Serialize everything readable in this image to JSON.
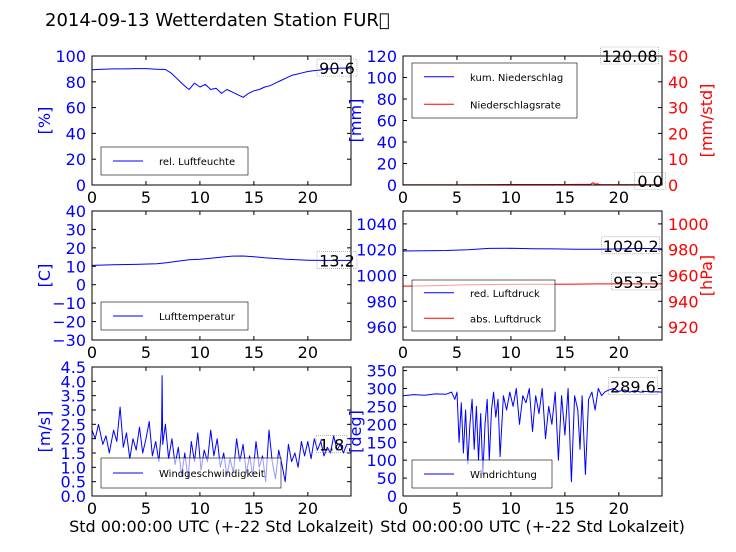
{
  "figure_title": "2014-09-13 Wetterdaten Station FUR\u0000",
  "chart_data": [
    {
      "id": "humidity",
      "type": "line",
      "ylabel": "[%]",
      "xlabel": "",
      "xlim": [
        0,
        24
      ],
      "ylim": [
        0,
        100
      ],
      "xticks": [
        "0",
        "5",
        "10",
        "15",
        "20"
      ],
      "yticks": [
        "0",
        "20",
        "40",
        "60",
        "80",
        "100"
      ],
      "legend": {
        "placement": "lower-left",
        "entries": [
          {
            "label": "rel. Luftfeuchte",
            "color": "#0000ff"
          }
        ]
      },
      "annotations": [
        {
          "text": "90.6",
          "x": 22.7,
          "y": 90.6
        }
      ],
      "series": [
        {
          "name": "rel. Luftfeuchte",
          "color": "#0000ff",
          "x": [
            0,
            1,
            2,
            3,
            4,
            5,
            6,
            6.8,
            7.3,
            7.8,
            8.3,
            8.7,
            9.0,
            9.5,
            10,
            10.5,
            11,
            11.5,
            12,
            12.5,
            13,
            13.5,
            14,
            14.5,
            15,
            15.5,
            16,
            16.5,
            17,
            17.5,
            18,
            18.5,
            19,
            19.5,
            20,
            20.5,
            21,
            21.5,
            22,
            22.5,
            23,
            24
          ],
          "y": [
            89.3,
            89.8,
            90,
            90,
            90.2,
            90.2,
            89.8,
            89.5,
            87,
            83,
            79,
            76,
            74,
            79,
            76,
            78,
            74,
            75,
            71,
            74,
            72,
            70,
            68,
            71,
            73,
            74,
            76,
            77,
            79,
            81,
            83,
            85,
            86,
            87,
            88,
            88.5,
            89,
            89.5,
            90,
            90.3,
            90.6,
            90.6
          ]
        }
      ]
    },
    {
      "id": "precip",
      "type": "line",
      "ylabel": "[mm]",
      "ylabel_right": "[mm/std]",
      "xlabel": "",
      "xlim": [
        0,
        24
      ],
      "ylim": [
        0,
        120
      ],
      "ylim_right": [
        0,
        50
      ],
      "xticks": [
        "0",
        "5",
        "10",
        "15",
        "20"
      ],
      "yticks": [
        "0",
        "20",
        "40",
        "60",
        "80",
        "100",
        "120"
      ],
      "yticks_right": [
        "0",
        "10",
        "20",
        "30",
        "40",
        "50"
      ],
      "legend": {
        "placement": "upper-left",
        "entries": [
          {
            "label": "kum. Niederschlag",
            "color": "#0000ff"
          },
          {
            "label": "Niederschlagsrate",
            "color": "#ff0000"
          }
        ]
      },
      "annotations": [
        {
          "text": "120.08",
          "x": 21.0,
          "y": 120
        },
        {
          "text": "0.0",
          "x": 22.9,
          "y": 3.5
        }
      ],
      "series": [
        {
          "name": "kum. Niederschlag",
          "color": "#0000ff",
          "axis": "left",
          "x": [
            0,
            24
          ],
          "y": [
            0,
            0
          ]
        },
        {
          "name": "Niederschlagsrate",
          "color": "#ff0000",
          "axis": "right",
          "x": [
            0,
            5,
            10,
            15,
            17.4,
            17.6,
            17.8,
            18,
            18.2,
            24
          ],
          "y": [
            0.1,
            0.1,
            0.2,
            0.2,
            0.3,
            0.9,
            0.3,
            0.5,
            0.2,
            0.1
          ]
        }
      ]
    },
    {
      "id": "temperature",
      "type": "line",
      "ylabel": "[C]",
      "xlabel": "",
      "xlim": [
        0,
        24
      ],
      "ylim": [
        -30,
        40
      ],
      "xticks": [
        "0",
        "5",
        "10",
        "15",
        "20"
      ],
      "yticks": [
        "−30",
        "−20",
        "−10",
        "0",
        "10",
        "20",
        "30",
        "40"
      ],
      "legend": {
        "placement": "lower-left",
        "entries": [
          {
            "label": "Lufttemperatur",
            "color": "#0000ff"
          }
        ]
      },
      "annotations": [
        {
          "text": "13.2",
          "x": 22.7,
          "y": 13.2
        }
      ],
      "series": [
        {
          "name": "Lufttemperatur",
          "color": "#0000ff",
          "x": [
            0,
            2,
            4,
            6,
            7,
            8,
            9,
            10,
            11,
            12,
            13,
            14,
            15,
            16,
            17,
            18,
            19,
            20,
            21,
            22,
            23,
            24
          ],
          "y": [
            10.5,
            10.8,
            11,
            11.4,
            12,
            12.8,
            13.5,
            13.8,
            14.4,
            15,
            15.5,
            15.6,
            15.2,
            14.6,
            14.2,
            13.8,
            13.5,
            13.3,
            13.2,
            13.2,
            13.2,
            13.2
          ]
        }
      ]
    },
    {
      "id": "pressure",
      "type": "line",
      "ylabel": "",
      "ylabel_right": "[hPa]",
      "xlabel": "",
      "xlim": [
        0,
        24
      ],
      "ylim": [
        950,
        1050
      ],
      "ylim_right": [
        910,
        1010
      ],
      "xticks": [
        "0",
        "5",
        "10",
        "15",
        "20"
      ],
      "yticks": [
        "960",
        "980",
        "1000",
        "1020",
        "1040"
      ],
      "yticks_right": [
        "920",
        "940",
        "960",
        "980",
        "1000"
      ],
      "legend": {
        "placement": "lower-left",
        "entries": [
          {
            "label": "red. Luftdruck",
            "color": "#0000ff"
          },
          {
            "label": "abs. Luftdruck",
            "color": "#ff0000"
          }
        ]
      },
      "annotations": [
        {
          "text": "1020.2",
          "x": 21.1,
          "y": 1023
        },
        {
          "text": "953.5",
          "x": 21.6,
          "y": 995
        }
      ],
      "series": [
        {
          "name": "red. Luftdruck",
          "color": "#0000ff",
          "axis": "left",
          "x": [
            0,
            2,
            4,
            6,
            8,
            10,
            12,
            14,
            16,
            18,
            20,
            22,
            24
          ],
          "y": [
            1019,
            1019.2,
            1019.4,
            1020,
            1021,
            1021.1,
            1020.7,
            1020.6,
            1020.4,
            1020.4,
            1020.6,
            1021,
            1020.8
          ]
        },
        {
          "name": "abs. Luftdruck",
          "color": "#ff0000",
          "axis": "right",
          "x": [
            0,
            2,
            4,
            6,
            8,
            10,
            12,
            14,
            16,
            18,
            20,
            22,
            24
          ],
          "y": [
            951.8,
            951.9,
            952.3,
            952.8,
            953,
            953.1,
            953.2,
            953.2,
            953.3,
            953.5,
            953.5,
            953.5,
            953.5
          ]
        }
      ]
    },
    {
      "id": "wind-speed",
      "type": "line",
      "ylabel": "[m/s]",
      "xlabel": "Std 00:00:00 UTC (+-22 Std Lokalzeit)",
      "xlim": [
        0,
        24
      ],
      "ylim": [
        0,
        4.5
      ],
      "xticks": [
        "0",
        "5",
        "10",
        "15",
        "20"
      ],
      "yticks": [
        "0.0",
        "0.5",
        "1.0",
        "1.5",
        "2.0",
        "2.5",
        "3.0",
        "3.5",
        "4.0",
        "4.5"
      ],
      "legend": {
        "placement": "lower-left",
        "entries": [
          {
            "label": "Windgeschwindigkeit",
            "color": "#0000ff"
          }
        ]
      },
      "annotations": [
        {
          "text": "1.8",
          "x": 22.2,
          "y": 1.8
        }
      ],
      "series": [
        {
          "name": "Windgeschwindigkeit",
          "color": "#0000ff",
          "x": [
            0,
            0.3,
            0.6,
            1,
            1.3,
            1.6,
            2,
            2.3,
            2.6,
            2.9,
            3.2,
            3.5,
            3.8,
            4.1,
            4.4,
            4.7,
            5,
            5.3,
            5.6,
            5.9,
            6.2,
            6.45,
            6.5,
            6.55,
            6.8,
            7.1,
            7.4,
            7.7,
            8,
            8.3,
            8.6,
            8.9,
            9.2,
            9.5,
            9.8,
            10.1,
            10.4,
            10.7,
            11,
            11.3,
            11.6,
            11.9,
            12.2,
            12.5,
            12.8,
            13.1,
            13.4,
            13.7,
            14,
            14.3,
            14.6,
            14.9,
            15.2,
            15.5,
            15.8,
            16.1,
            16.4,
            16.7,
            17,
            17.3,
            17.6,
            17.9,
            18.2,
            18.5,
            18.8,
            19.1,
            19.4,
            19.7,
            20,
            20.3,
            20.6,
            20.9,
            21.2,
            21.5,
            21.8,
            22.1,
            22.4,
            22.7,
            23,
            23.3,
            23.6,
            24
          ],
          "y": [
            2.3,
            2.0,
            2.5,
            1.8,
            2.1,
            1.5,
            2.3,
            1.9,
            3.1,
            1.7,
            2.2,
            1.3,
            2.0,
            1.6,
            2.4,
            1.5,
            2.0,
            2.6,
            1.4,
            1.9,
            1.2,
            2.4,
            4.2,
            1.8,
            2.5,
            1.3,
            2.0,
            1.1,
            1.7,
            0.7,
            1.5,
            0.6,
            1.9,
            1.2,
            2.2,
            0.9,
            1.6,
            1.2,
            2.3,
            1.4,
            2.0,
            1.0,
            1.5,
            0.7,
            1.3,
            0.8,
            2.0,
            1.2,
            1.8,
            0.8,
            1.4,
            0.7,
            1.9,
            1.0,
            1.4,
            0.5,
            2.3,
            1.2,
            0.6,
            1.6,
            1.1,
            0.5,
            1.8,
            1.2,
            1.5,
            1.0,
            1.9,
            1.4,
            1.9,
            1.3,
            2.0,
            1.6,
            1.9,
            1.4,
            1.7,
            1.5,
            2.1,
            1.6,
            1.8,
            1.5,
            1.8,
            1.8
          ]
        }
      ]
    },
    {
      "id": "wind-direction",
      "type": "line",
      "ylabel": "[deg]",
      "xlabel": "Std 00:00:00 UTC (+-22 Std Lokalzeit)",
      "xlim": [
        0,
        24
      ],
      "ylim": [
        0,
        360
      ],
      "xticks": [
        "0",
        "5",
        "10",
        "15",
        "20"
      ],
      "yticks": [
        "0",
        "50",
        "100",
        "150",
        "200",
        "250",
        "300",
        "350"
      ],
      "legend": {
        "placement": "lower-left",
        "entries": [
          {
            "label": "Windrichtung",
            "color": "#0000ff"
          }
        ]
      },
      "annotations": [
        {
          "text": "289.6",
          "x": 21.3,
          "y": 305
        }
      ],
      "series": [
        {
          "name": "Windrichtung",
          "color": "#0000ff",
          "x": [
            0,
            1,
            2,
            3,
            4,
            4.5,
            4.8,
            5,
            5.2,
            5.4,
            5.6,
            5.8,
            6,
            6.2,
            6.4,
            6.6,
            6.8,
            7,
            7.2,
            7.4,
            7.6,
            7.8,
            8,
            8.2,
            8.4,
            8.6,
            8.8,
            9,
            9.3,
            9.6,
            9.9,
            10.2,
            10.5,
            10.8,
            11.1,
            11.4,
            11.7,
            12,
            12.3,
            12.6,
            12.9,
            13.2,
            13.5,
            13.8,
            14.1,
            14.4,
            14.7,
            15,
            15.3,
            15.6,
            15.9,
            16.2,
            16.4,
            16.6,
            16.9,
            17.2,
            17.5,
            17.8,
            18.1,
            18.4,
            18.7,
            19,
            19.5,
            20,
            20.5,
            21,
            21.5,
            22,
            22.5,
            23,
            23.5,
            24
          ],
          "y": [
            280,
            283,
            281,
            285,
            284,
            290,
            270,
            290,
            150,
            260,
            120,
            240,
            90,
            200,
            270,
            130,
            250,
            100,
            230,
            60,
            200,
            270,
            100,
            240,
            290,
            220,
            270,
            110,
            280,
            240,
            290,
            250,
            300,
            200,
            280,
            260,
            300,
            180,
            280,
            230,
            300,
            160,
            250,
            200,
            290,
            100,
            280,
            170,
            300,
            40,
            280,
            240,
            130,
            280,
            60,
            270,
            290,
            240,
            300,
            280,
            290,
            295,
            300,
            292,
            296,
            290,
            294,
            290,
            292,
            290,
            291,
            290
          ]
        }
      ]
    }
  ]
}
